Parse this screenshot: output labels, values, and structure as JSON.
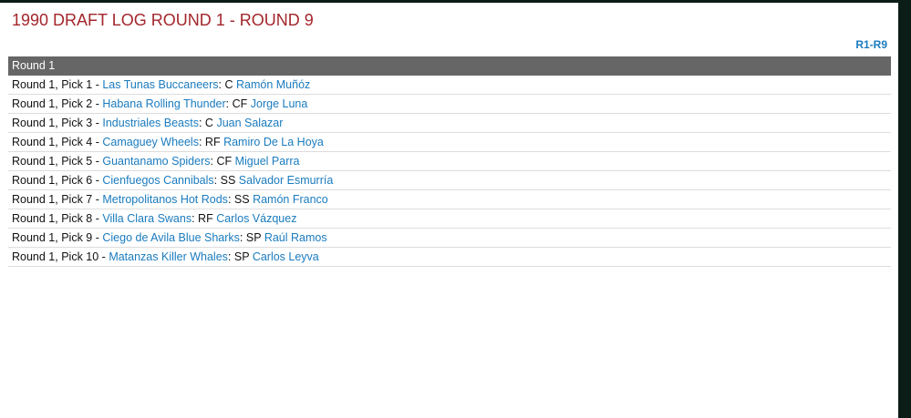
{
  "title": "1990 DRAFT LOG ROUND 1 - ROUND 9",
  "nav_link": "R1-R9",
  "section_header": "Round 1",
  "picks": [
    {
      "label": "Round 1, Pick 1",
      "team": "Las Tunas Buccaneers",
      "pos": "C",
      "player": "Ramón Muñóz"
    },
    {
      "label": "Round 1, Pick 2",
      "team": "Habana Rolling Thunder",
      "pos": "CF",
      "player": "Jorge Luna"
    },
    {
      "label": "Round 1, Pick 3",
      "team": "Industriales Beasts",
      "pos": "C",
      "player": "Juan Salazar"
    },
    {
      "label": "Round 1, Pick 4",
      "team": "Camaguey Wheels",
      "pos": "RF",
      "player": "Ramiro De La Hoya"
    },
    {
      "label": "Round 1, Pick 5",
      "team": "Guantanamo Spiders",
      "pos": "CF",
      "player": "Miguel Parra"
    },
    {
      "label": "Round 1, Pick 6",
      "team": "Cienfuegos Cannibals",
      "pos": "SS",
      "player": "Salvador Esmurría"
    },
    {
      "label": "Round 1, Pick 7",
      "team": "Metropolitanos Hot Rods",
      "pos": "SS",
      "player": "Ramón Franco"
    },
    {
      "label": "Round 1, Pick 8",
      "team": "Villa Clara Swans",
      "pos": "RF",
      "player": "Carlos Vázquez"
    },
    {
      "label": "Round 1, Pick 9",
      "team": "Ciego de Avila Blue Sharks",
      "pos": "SP",
      "player": "Raúl Ramos"
    },
    {
      "label": "Round 1, Pick 10",
      "team": "Matanzas Killer Whales",
      "pos": "SP",
      "player": "Carlos Leyva"
    }
  ],
  "colors": {
    "title": "#a3262b",
    "link": "#1a7bbf",
    "header_bg": "#666666"
  }
}
